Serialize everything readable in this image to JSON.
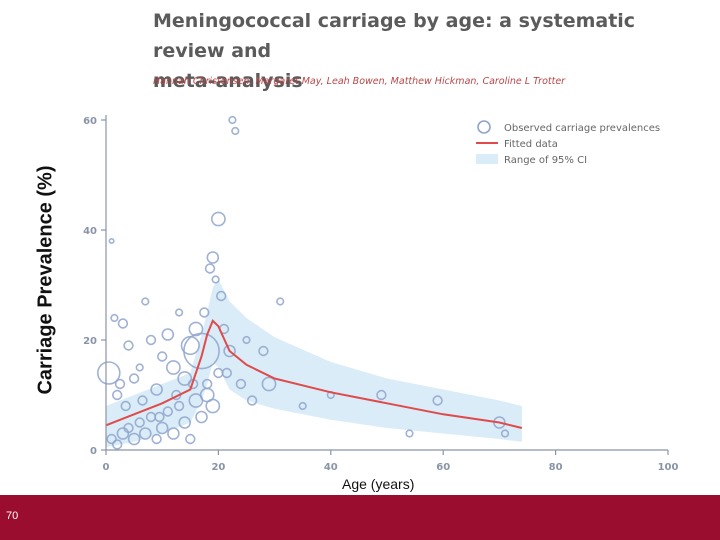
{
  "slide": {
    "title_line1": "Meningococcal carriage by age: a systematic review and",
    "title_line2": "meta-analysis",
    "authors": "Hannah Christensen, Margaret May, Leah Bowen, Matthew Hickman, Caroline L Trotter",
    "page_number": "70"
  },
  "colors": {
    "circle": "#8fa4cc",
    "fitted": "#e04a4a",
    "ci": "#d9ecf7",
    "axis": "#8a94a8",
    "footer": "#9b0d2e"
  },
  "chart_data": {
    "type": "scatter",
    "title": "Meningococcal carriage by age: a systematic review and meta-analysis",
    "xlabel": "Age (years)",
    "ylabel": "Carriage Prevalence (%)",
    "xlim": [
      0,
      100
    ],
    "ylim": [
      0,
      60
    ],
    "xticks": [
      0,
      20,
      40,
      60,
      80,
      100
    ],
    "yticks": [
      0,
      20,
      40,
      60
    ],
    "legend": {
      "position": "top-right",
      "entries": [
        "Observed carriage prevalences",
        "Fitted data",
        "Range of 95% CI"
      ]
    },
    "series": [
      {
        "name": "Observed carriage prevalences",
        "type": "scatter",
        "points": [
          {
            "x": 0.5,
            "y": 14,
            "s": 5
          },
          {
            "x": 1,
            "y": 38,
            "s": 1
          },
          {
            "x": 1.5,
            "y": 24,
            "s": 1.5
          },
          {
            "x": 2,
            "y": 10,
            "s": 2
          },
          {
            "x": 2.5,
            "y": 12,
            "s": 2
          },
          {
            "x": 3,
            "y": 23,
            "s": 2
          },
          {
            "x": 4,
            "y": 19,
            "s": 2
          },
          {
            "x": 5,
            "y": 13,
            "s": 2
          },
          {
            "x": 6,
            "y": 15,
            "s": 1.5
          },
          {
            "x": 7,
            "y": 27,
            "s": 1.5
          },
          {
            "x": 8,
            "y": 20,
            "s": 2
          },
          {
            "x": 9,
            "y": 11,
            "s": 2.5
          },
          {
            "x": 10,
            "y": 17,
            "s": 2
          },
          {
            "x": 11,
            "y": 21,
            "s": 2.5
          },
          {
            "x": 12,
            "y": 15,
            "s": 3
          },
          {
            "x": 13,
            "y": 25,
            "s": 1.5
          },
          {
            "x": 14,
            "y": 13,
            "s": 3
          },
          {
            "x": 15,
            "y": 19,
            "s": 4
          },
          {
            "x": 16,
            "y": 22,
            "s": 3
          },
          {
            "x": 17,
            "y": 18,
            "s": 8
          },
          {
            "x": 17.5,
            "y": 25,
            "s": 2
          },
          {
            "x": 18,
            "y": 10,
            "s": 3
          },
          {
            "x": 18.5,
            "y": 33,
            "s": 2
          },
          {
            "x": 19,
            "y": 35,
            "s": 2.5
          },
          {
            "x": 19.5,
            "y": 31,
            "s": 1.5
          },
          {
            "x": 20,
            "y": 42,
            "s": 3
          },
          {
            "x": 20.5,
            "y": 28,
            "s": 2
          },
          {
            "x": 21,
            "y": 22,
            "s": 2
          },
          {
            "x": 21.5,
            "y": 14,
            "s": 2
          },
          {
            "x": 22,
            "y": 18,
            "s": 2.5
          },
          {
            "x": 22.5,
            "y": 60,
            "s": 1.5
          },
          {
            "x": 23,
            "y": 58,
            "s": 1.5
          },
          {
            "x": 24,
            "y": 12,
            "s": 2
          },
          {
            "x": 25,
            "y": 20,
            "s": 1.5
          },
          {
            "x": 26,
            "y": 9,
            "s": 2
          },
          {
            "x": 28,
            "y": 18,
            "s": 2
          },
          {
            "x": 29,
            "y": 12,
            "s": 3
          },
          {
            "x": 31,
            "y": 27,
            "s": 1.5
          },
          {
            "x": 35,
            "y": 8,
            "s": 1.5
          },
          {
            "x": 40,
            "y": 10,
            "s": 1.5
          },
          {
            "x": 49,
            "y": 10,
            "s": 2
          },
          {
            "x": 54,
            "y": 3,
            "s": 1.5
          },
          {
            "x": 59,
            "y": 9,
            "s": 2
          },
          {
            "x": 70,
            "y": 5,
            "s": 2.5
          },
          {
            "x": 71,
            "y": 3,
            "s": 1.5
          },
          {
            "x": 1,
            "y": 2,
            "s": 2
          },
          {
            "x": 2,
            "y": 1,
            "s": 2
          },
          {
            "x": 3,
            "y": 3,
            "s": 2.5
          },
          {
            "x": 4,
            "y": 4,
            "s": 2
          },
          {
            "x": 5,
            "y": 2,
            "s": 2.5
          },
          {
            "x": 6,
            "y": 5,
            "s": 2
          },
          {
            "x": 7,
            "y": 3,
            "s": 2.5
          },
          {
            "x": 8,
            "y": 6,
            "s": 2
          },
          {
            "x": 9,
            "y": 2,
            "s": 2
          },
          {
            "x": 10,
            "y": 4,
            "s": 2.5
          },
          {
            "x": 11,
            "y": 7,
            "s": 2
          },
          {
            "x": 12,
            "y": 3,
            "s": 2.5
          },
          {
            "x": 13,
            "y": 8,
            "s": 2
          },
          {
            "x": 14,
            "y": 5,
            "s": 2.5
          },
          {
            "x": 15,
            "y": 2,
            "s": 2
          },
          {
            "x": 16,
            "y": 9,
            "s": 3
          },
          {
            "x": 17,
            "y": 6,
            "s": 2.5
          },
          {
            "x": 18,
            "y": 12,
            "s": 2
          },
          {
            "x": 19,
            "y": 8,
            "s": 3
          },
          {
            "x": 20,
            "y": 14,
            "s": 2
          },
          {
            "x": 3.5,
            "y": 8,
            "s": 2
          },
          {
            "x": 6.5,
            "y": 9,
            "s": 2
          },
          {
            "x": 9.5,
            "y": 6,
            "s": 2
          },
          {
            "x": 12.5,
            "y": 10,
            "s": 2
          },
          {
            "x": 15.5,
            "y": 12,
            "s": 2
          }
        ]
      },
      {
        "name": "Fitted data",
        "type": "line",
        "x": [
          0,
          5,
          10,
          15,
          17,
          18,
          19,
          20,
          22,
          25,
          30,
          40,
          50,
          60,
          70,
          74
        ],
        "y": [
          4.5,
          6.5,
          8.5,
          11,
          17,
          21,
          23.5,
          22.5,
          18,
          15.5,
          13,
          10.5,
          8.5,
          6.5,
          5,
          4
        ]
      },
      {
        "name": "Range of 95% CI",
        "type": "area",
        "x": [
          0,
          5,
          10,
          15,
          17,
          18,
          19,
          20,
          22,
          25,
          30,
          40,
          50,
          60,
          70,
          74
        ],
        "lower": [
          0.5,
          1.5,
          3,
          5,
          9,
          12,
          16,
          15,
          11,
          9,
          7.5,
          5.5,
          4,
          3,
          2,
          1.5
        ],
        "upper": [
          8,
          10,
          12,
          14,
          21,
          25,
          29.5,
          31,
          27,
          24,
          20.5,
          16,
          13,
          11,
          9,
          8
        ]
      }
    ]
  }
}
